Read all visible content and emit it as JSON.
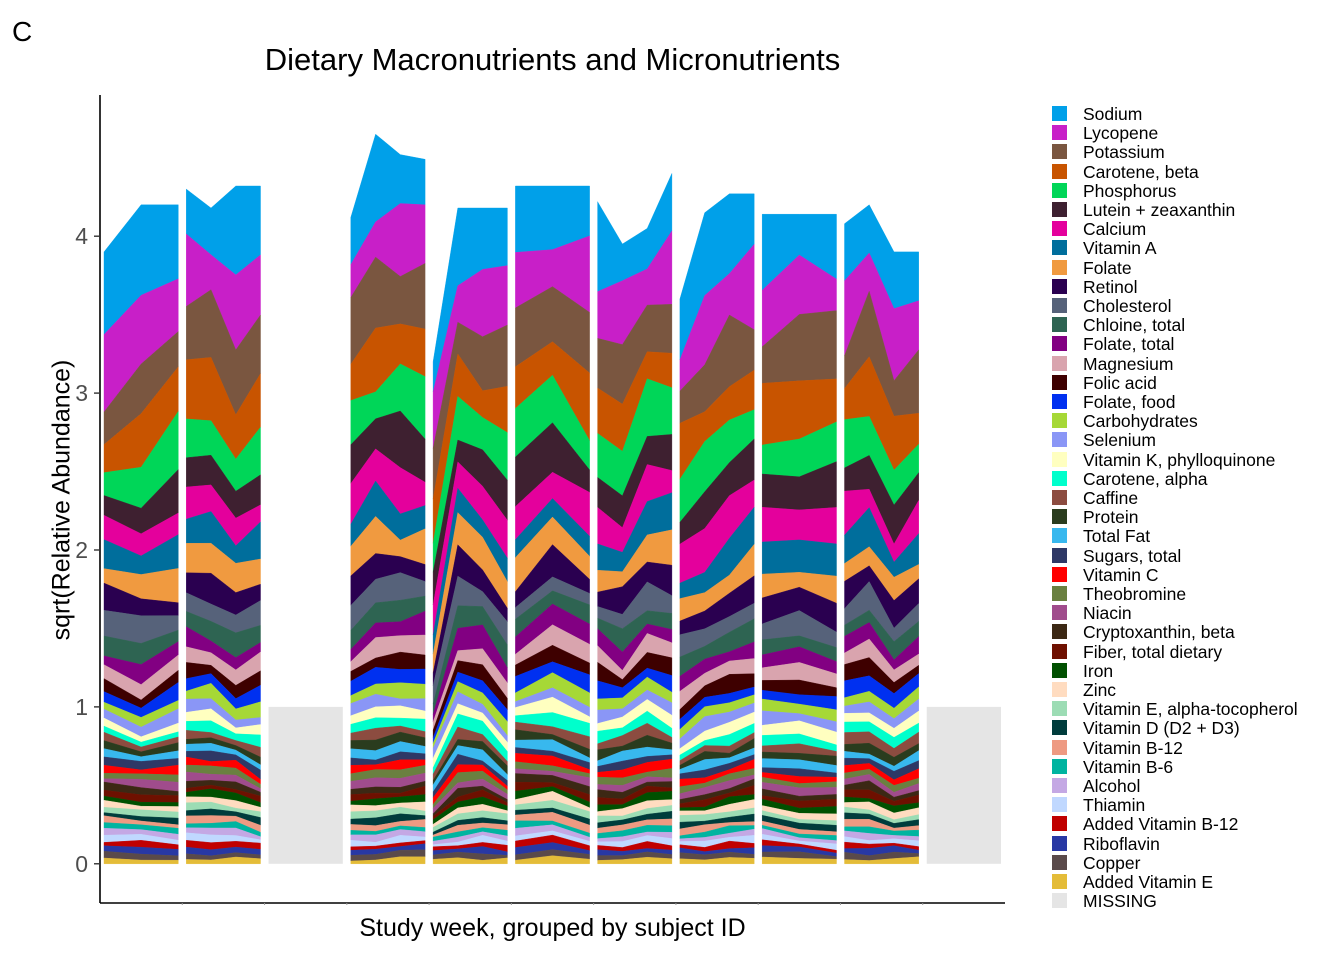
{
  "panel_label": "C",
  "chart_data": {
    "type": "stacked_area",
    "title": "Dietary Macronutrients and Micronutrients",
    "xlabel": "Study week, grouped by subject ID",
    "ylabel": "sqrt(Relative Abundance)",
    "ylim": [
      -0.25,
      4.9
    ],
    "yticks": [
      0,
      1,
      2,
      3,
      4
    ],
    "grid": false,
    "legend_position": "right",
    "series": [
      {
        "name": "Sodium",
        "color": "#00A0E9"
      },
      {
        "name": "Lycopene",
        "color": "#C81FC8"
      },
      {
        "name": "Potassium",
        "color": "#7A5640"
      },
      {
        "name": "Carotene, beta",
        "color": "#C85400"
      },
      {
        "name": "Phosphorus",
        "color": "#00D658"
      },
      {
        "name": "Lutein + zeaxanthin",
        "color": "#3E2030"
      },
      {
        "name": "Calcium",
        "color": "#E4009C"
      },
      {
        "name": "Vitamin A",
        "color": "#006E9C"
      },
      {
        "name": "Folate",
        "color": "#F09A40"
      },
      {
        "name": "Retinol",
        "color": "#2A0050"
      },
      {
        "name": "Cholesterol",
        "color": "#56627A"
      },
      {
        "name": "Chloine, total",
        "color": "#2E6452"
      },
      {
        "name": "Folate, total",
        "color": "#820082"
      },
      {
        "name": "Magnesium",
        "color": "#D9A4AE"
      },
      {
        "name": "Folic acid",
        "color": "#3E0000"
      },
      {
        "name": "Folate, food",
        "color": "#0030F0"
      },
      {
        "name": "Carbohydrates",
        "color": "#A6D836"
      },
      {
        "name": "Selenium",
        "color": "#8A96F6"
      },
      {
        "name": "Vitamin K, phylloquinone",
        "color": "#FFFFC0"
      },
      {
        "name": "Carotene, alpha",
        "color": "#00FFCC"
      },
      {
        "name": "Caffine",
        "color": "#8C4C40"
      },
      {
        "name": "Protein",
        "color": "#2A3C1E"
      },
      {
        "name": "Total Fat",
        "color": "#38B8EE"
      },
      {
        "name": "Sugars, total",
        "color": "#2E3866"
      },
      {
        "name": "Vitamin C",
        "color": "#FF0000"
      },
      {
        "name": "Theobromine",
        "color": "#6A8040"
      },
      {
        "name": "Niacin",
        "color": "#A04C8C"
      },
      {
        "name": "Cryptoxanthin, beta",
        "color": "#3C2814"
      },
      {
        "name": "Fiber, total dietary",
        "color": "#6E1000"
      },
      {
        "name": "Iron",
        "color": "#005000"
      },
      {
        "name": "Zinc",
        "color": "#FFDCC0"
      },
      {
        "name": "Vitamin E, alpha-tocopherol",
        "color": "#9CDCB4"
      },
      {
        "name": "Vitamin D (D2 + D3)",
        "color": "#003C3C"
      },
      {
        "name": "Vitamin B-12",
        "color": "#EE9A82"
      },
      {
        "name": "Vitamin B-6",
        "color": "#00B4A0"
      },
      {
        "name": "Alcohol",
        "color": "#C4A8E4"
      },
      {
        "name": "Thiamin",
        "color": "#C0D8FF"
      },
      {
        "name": "Added Vitamin B-12",
        "color": "#C00000"
      },
      {
        "name": "Riboflavin",
        "color": "#2838A4"
      },
      {
        "name": "Copper",
        "color": "#5A4A4A"
      },
      {
        "name": "Added Vitamin E",
        "color": "#E4BC38"
      },
      {
        "name": "MISSING",
        "color": "#E5E5E5"
      }
    ],
    "groups": [
      {
        "weeks": 3,
        "tops": [
          3.9,
          4.2,
          4.2
        ],
        "missing": false
      },
      {
        "weeks": 4,
        "tops": [
          4.3,
          4.18,
          4.32,
          4.32
        ],
        "missing": false
      },
      {
        "weeks": 1,
        "tops": [
          1.0
        ],
        "missing": true
      },
      {
        "weeks": 4,
        "tops": [
          4.12,
          4.65,
          4.52,
          4.49
        ],
        "missing": false
      },
      {
        "weeks": 4,
        "tops": [
          3.2,
          4.18,
          4.18,
          4.18
        ],
        "missing": false
      },
      {
        "weeks": 3,
        "tops": [
          4.32,
          4.32,
          4.32
        ],
        "missing": false
      },
      {
        "weeks": 4,
        "tops": [
          4.22,
          3.95,
          4.05,
          4.4
        ],
        "missing": false
      },
      {
        "weeks": 4,
        "tops": [
          3.6,
          4.15,
          4.27,
          4.27
        ],
        "missing": false
      },
      {
        "weeks": 3,
        "tops": [
          4.14,
          4.14,
          4.14
        ],
        "missing": false
      },
      {
        "weeks": 4,
        "tops": [
          4.08,
          4.2,
          3.9,
          3.9
        ],
        "missing": false
      },
      {
        "weeks": 1,
        "tops": [
          1.0
        ],
        "missing": true
      }
    ]
  }
}
